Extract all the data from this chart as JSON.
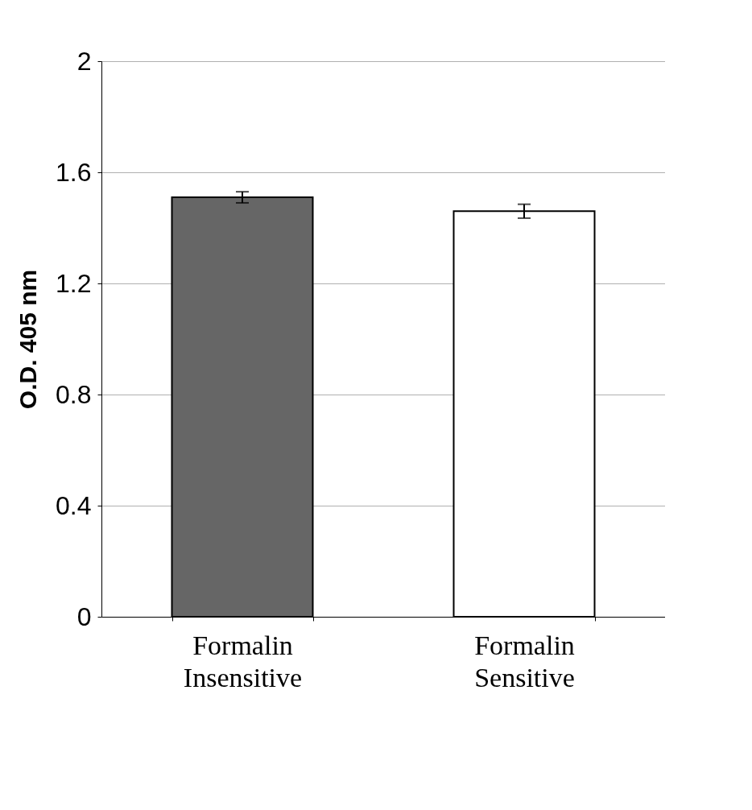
{
  "chart_data": {
    "type": "bar",
    "ylabel": "O.D. 405 nm",
    "categories": [
      "Formalin Insensitive",
      "Formalin Sensitive"
    ],
    "values": [
      1.51,
      1.46
    ],
    "colors": [
      "#666666",
      "#ffffff"
    ],
    "errors": [
      0.02,
      0.025
    ],
    "ylim": [
      0,
      2
    ],
    "yticks": [
      0,
      0.4,
      0.8,
      1.2,
      1.6,
      2
    ],
    "grid": "y",
    "legend": false
  }
}
